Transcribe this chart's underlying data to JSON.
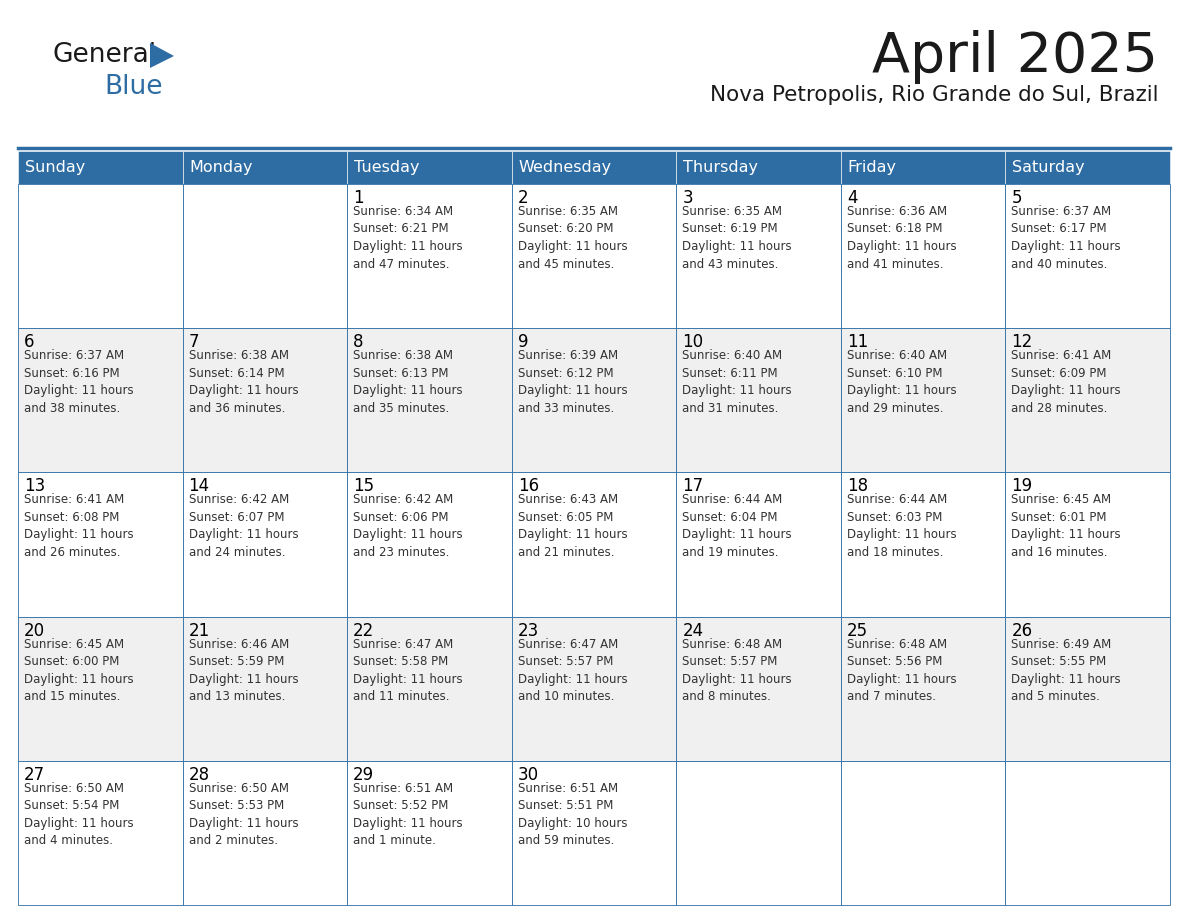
{
  "title": "April 2025",
  "subtitle": "Nova Petropolis, Rio Grande do Sul, Brazil",
  "days_of_week": [
    "Sunday",
    "Monday",
    "Tuesday",
    "Wednesday",
    "Thursday",
    "Friday",
    "Saturday"
  ],
  "header_bg": "#2E6DA4",
  "header_text": "#FFFFFF",
  "cell_bg_light": "#F0F0F0",
  "cell_bg_white": "#FFFFFF",
  "cell_border": "#2E6DA4",
  "day_number_color": "#000000",
  "info_text_color": "#333333",
  "title_color": "#1a1a1a",
  "subtitle_color": "#1a1a1a",
  "logo_general_color": "#1a1a1a",
  "logo_blue_color": "#2E6DA4",
  "weeks": [
    [
      {
        "day": "",
        "info": ""
      },
      {
        "day": "",
        "info": ""
      },
      {
        "day": "1",
        "info": "Sunrise: 6:34 AM\nSunset: 6:21 PM\nDaylight: 11 hours\nand 47 minutes."
      },
      {
        "day": "2",
        "info": "Sunrise: 6:35 AM\nSunset: 6:20 PM\nDaylight: 11 hours\nand 45 minutes."
      },
      {
        "day": "3",
        "info": "Sunrise: 6:35 AM\nSunset: 6:19 PM\nDaylight: 11 hours\nand 43 minutes."
      },
      {
        "day": "4",
        "info": "Sunrise: 6:36 AM\nSunset: 6:18 PM\nDaylight: 11 hours\nand 41 minutes."
      },
      {
        "day": "5",
        "info": "Sunrise: 6:37 AM\nSunset: 6:17 PM\nDaylight: 11 hours\nand 40 minutes."
      }
    ],
    [
      {
        "day": "6",
        "info": "Sunrise: 6:37 AM\nSunset: 6:16 PM\nDaylight: 11 hours\nand 38 minutes."
      },
      {
        "day": "7",
        "info": "Sunrise: 6:38 AM\nSunset: 6:14 PM\nDaylight: 11 hours\nand 36 minutes."
      },
      {
        "day": "8",
        "info": "Sunrise: 6:38 AM\nSunset: 6:13 PM\nDaylight: 11 hours\nand 35 minutes."
      },
      {
        "day": "9",
        "info": "Sunrise: 6:39 AM\nSunset: 6:12 PM\nDaylight: 11 hours\nand 33 minutes."
      },
      {
        "day": "10",
        "info": "Sunrise: 6:40 AM\nSunset: 6:11 PM\nDaylight: 11 hours\nand 31 minutes."
      },
      {
        "day": "11",
        "info": "Sunrise: 6:40 AM\nSunset: 6:10 PM\nDaylight: 11 hours\nand 29 minutes."
      },
      {
        "day": "12",
        "info": "Sunrise: 6:41 AM\nSunset: 6:09 PM\nDaylight: 11 hours\nand 28 minutes."
      }
    ],
    [
      {
        "day": "13",
        "info": "Sunrise: 6:41 AM\nSunset: 6:08 PM\nDaylight: 11 hours\nand 26 minutes."
      },
      {
        "day": "14",
        "info": "Sunrise: 6:42 AM\nSunset: 6:07 PM\nDaylight: 11 hours\nand 24 minutes."
      },
      {
        "day": "15",
        "info": "Sunrise: 6:42 AM\nSunset: 6:06 PM\nDaylight: 11 hours\nand 23 minutes."
      },
      {
        "day": "16",
        "info": "Sunrise: 6:43 AM\nSunset: 6:05 PM\nDaylight: 11 hours\nand 21 minutes."
      },
      {
        "day": "17",
        "info": "Sunrise: 6:44 AM\nSunset: 6:04 PM\nDaylight: 11 hours\nand 19 minutes."
      },
      {
        "day": "18",
        "info": "Sunrise: 6:44 AM\nSunset: 6:03 PM\nDaylight: 11 hours\nand 18 minutes."
      },
      {
        "day": "19",
        "info": "Sunrise: 6:45 AM\nSunset: 6:01 PM\nDaylight: 11 hours\nand 16 minutes."
      }
    ],
    [
      {
        "day": "20",
        "info": "Sunrise: 6:45 AM\nSunset: 6:00 PM\nDaylight: 11 hours\nand 15 minutes."
      },
      {
        "day": "21",
        "info": "Sunrise: 6:46 AM\nSunset: 5:59 PM\nDaylight: 11 hours\nand 13 minutes."
      },
      {
        "day": "22",
        "info": "Sunrise: 6:47 AM\nSunset: 5:58 PM\nDaylight: 11 hours\nand 11 minutes."
      },
      {
        "day": "23",
        "info": "Sunrise: 6:47 AM\nSunset: 5:57 PM\nDaylight: 11 hours\nand 10 minutes."
      },
      {
        "day": "24",
        "info": "Sunrise: 6:48 AM\nSunset: 5:57 PM\nDaylight: 11 hours\nand 8 minutes."
      },
      {
        "day": "25",
        "info": "Sunrise: 6:48 AM\nSunset: 5:56 PM\nDaylight: 11 hours\nand 7 minutes."
      },
      {
        "day": "26",
        "info": "Sunrise: 6:49 AM\nSunset: 5:55 PM\nDaylight: 11 hours\nand 5 minutes."
      }
    ],
    [
      {
        "day": "27",
        "info": "Sunrise: 6:50 AM\nSunset: 5:54 PM\nDaylight: 11 hours\nand 4 minutes."
      },
      {
        "day": "28",
        "info": "Sunrise: 6:50 AM\nSunset: 5:53 PM\nDaylight: 11 hours\nand 2 minutes."
      },
      {
        "day": "29",
        "info": "Sunrise: 6:51 AM\nSunset: 5:52 PM\nDaylight: 11 hours\nand 1 minute."
      },
      {
        "day": "30",
        "info": "Sunrise: 6:51 AM\nSunset: 5:51 PM\nDaylight: 10 hours\nand 59 minutes."
      },
      {
        "day": "",
        "info": ""
      },
      {
        "day": "",
        "info": ""
      },
      {
        "day": "",
        "info": ""
      }
    ]
  ]
}
